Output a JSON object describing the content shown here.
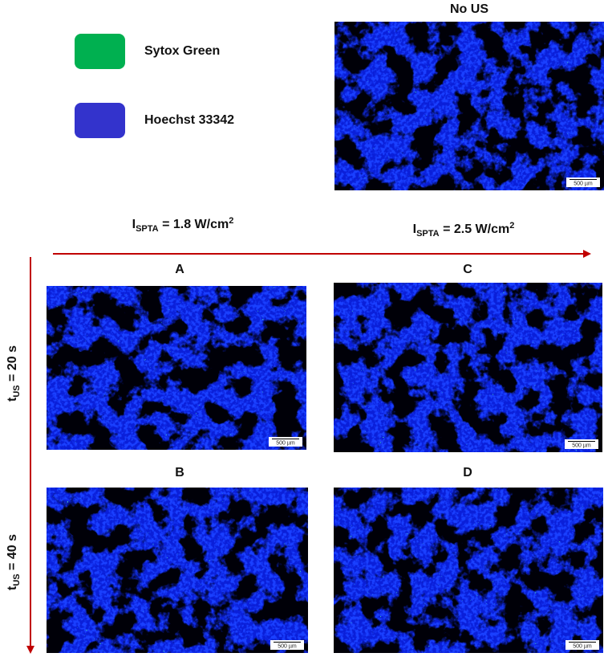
{
  "legend": [
    {
      "label": "Sytox Green",
      "color": "#00b050"
    },
    {
      "label": "Hoechst 33342",
      "color": "#3333cc"
    }
  ],
  "control": {
    "title": "No US",
    "scale_bar": "500 µm"
  },
  "columns": [
    {
      "symbol": "I",
      "subscript": "SPTA",
      "text": " = 1.8 W/cm",
      "superscript": "2"
    },
    {
      "symbol": "I",
      "subscript": "SPTA",
      "text": " = 2.5 W/cm",
      "superscript": "2"
    }
  ],
  "rows": [
    {
      "symbol": "t",
      "subscript": "US",
      "text": " = 20 s"
    },
    {
      "symbol": "t",
      "subscript": "US",
      "text": " = 40 s"
    }
  ],
  "panels": [
    {
      "label": "A",
      "scale_bar": "500 µm"
    },
    {
      "label": "C",
      "scale_bar": "500 µm"
    },
    {
      "label": "B",
      "scale_bar": "500 µm"
    },
    {
      "label": "D",
      "scale_bar": "500 µm"
    }
  ]
}
